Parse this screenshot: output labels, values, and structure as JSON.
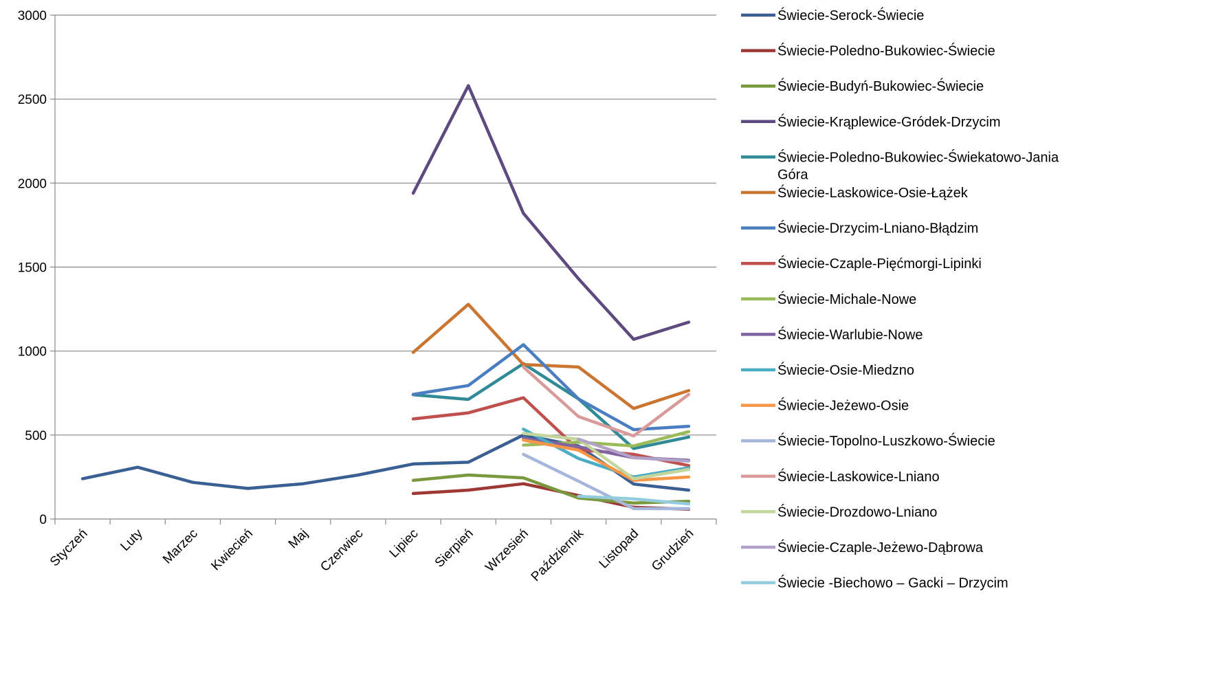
{
  "chart_data": {
    "type": "line",
    "title": "",
    "xlabel": "",
    "ylabel": "",
    "ylim": [
      0,
      3000
    ],
    "yticks": [
      0,
      500,
      1000,
      1500,
      2000,
      2500,
      3000
    ],
    "grid": true,
    "legend_position": "right",
    "categories": [
      "Styczeń",
      "Luty",
      "Marzec",
      "Kwiecień",
      "Maj",
      "Czerwiec",
      "Lipiec",
      "Sierpień",
      "Wrzesień",
      "Październik",
      "Listopad",
      "Grudzień"
    ],
    "series": [
      {
        "name": "Świecie-Serock-Świecie",
        "color": "#3A5F92",
        "values": [
          240,
          308,
          218,
          182,
          210,
          262,
          328,
          338,
          500,
          435,
          208,
          172
        ]
      },
      {
        "name": "Świecie-Poledno-Bukowiec-Świecie",
        "color": "#9E3835",
        "values": [
          null,
          null,
          null,
          null,
          null,
          null,
          152,
          172,
          210,
          140,
          70,
          58
        ]
      },
      {
        "name": "Świecie-Budyń-Bukowiec-Świecie",
        "color": "#7A993E",
        "values": [
          null,
          null,
          null,
          null,
          null,
          null,
          230,
          262,
          245,
          125,
          95,
          105
        ]
      },
      {
        "name": "Świecie-Krąplewice-Gródek-Drzycim",
        "color": "#5E4A7E",
        "values": [
          null,
          null,
          null,
          null,
          null,
          null,
          1940,
          2580,
          1820,
          1430,
          1070,
          1172
        ]
      },
      {
        "name": "Świecie-Poledno-Bukowiec-Świekatowo-Jania Góra",
        "color": "#318B97",
        "values": [
          null,
          null,
          null,
          null,
          null,
          null,
          740,
          712,
          925,
          715,
          420,
          488
        ]
      },
      {
        "name": "Świecie-Laskowice-Osie-Łążek",
        "color": "#CA7630",
        "values": [
          null,
          null,
          null,
          null,
          null,
          null,
          992,
          1278,
          920,
          905,
          658,
          765
        ]
      },
      {
        "name": "Świecie-Drzycim-Lniano-Błądzim",
        "color": "#4B7EC1",
        "values": [
          null,
          null,
          null,
          null,
          null,
          null,
          742,
          795,
          1038,
          715,
          532,
          552
        ]
      },
      {
        "name": "Świecie-Czaple-Pięćmorgi-Lipinki",
        "color": "#C0504D",
        "values": [
          null,
          null,
          null,
          null,
          null,
          null,
          596,
          632,
          722,
          412,
          385,
          318
        ]
      },
      {
        "name": "Świecie-Michale-Nowe",
        "color": "#9BBB59",
        "values": [
          null,
          null,
          null,
          null,
          null,
          null,
          null,
          null,
          440,
          458,
          435,
          520
        ]
      },
      {
        "name": "Świecie-Warlubie-Nowe",
        "color": "#8064A2",
        "values": [
          null,
          null,
          null,
          null,
          null,
          null,
          null,
          null,
          480,
          430,
          365,
          350
        ]
      },
      {
        "name": "Świecie-Osie-Miedzno",
        "color": "#4BACC6",
        "values": [
          null,
          null,
          null,
          null,
          null,
          null,
          null,
          null,
          535,
          360,
          250,
          305
        ]
      },
      {
        "name": "Świecie-Jeżewo-Osie",
        "color": "#F79646",
        "values": [
          null,
          null,
          null,
          null,
          null,
          null,
          null,
          null,
          470,
          410,
          230,
          250
        ]
      },
      {
        "name": "Świecie-Topolno-Luszkowo-Świecie",
        "color": "#A5B6DA",
        "values": [
          null,
          null,
          null,
          null,
          null,
          null,
          null,
          null,
          385,
          225,
          62,
          62
        ]
      },
      {
        "name": "Świecie-Laskowice-Lniano",
        "color": "#D99B9A",
        "values": [
          null,
          null,
          null,
          null,
          null,
          null,
          null,
          null,
          905,
          610,
          495,
          742
        ]
      },
      {
        "name": "Świecie-Drozdowo-Lniano",
        "color": "#C3D69B",
        "values": [
          null,
          null,
          null,
          null,
          null,
          null,
          null,
          null,
          510,
          475,
          240,
          295
        ]
      },
      {
        "name": "Świecie-Czaple-Jeżewo-Dąbrowa",
        "color": "#B3A2C7",
        "values": [
          null,
          null,
          null,
          null,
          null,
          null,
          null,
          null,
          null,
          475,
          365,
          345
        ]
      },
      {
        "name": "Świecie -Biechowo – Gacki – Drzycim",
        "color": "#93CDDD",
        "values": [
          null,
          null,
          null,
          null,
          null,
          null,
          null,
          null,
          null,
          135,
          120,
          90
        ]
      }
    ]
  }
}
